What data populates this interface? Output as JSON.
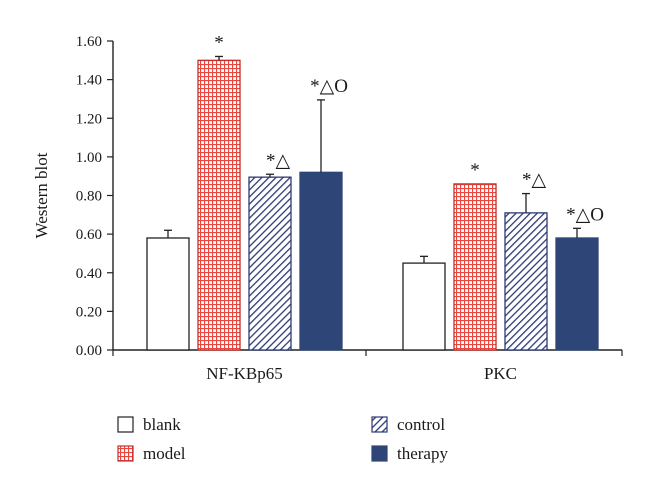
{
  "chart_data": {
    "type": "bar",
    "ylabel": "Western blot",
    "ylim": [
      0,
      1.6
    ],
    "yticks": [
      "0.00",
      "0.20",
      "0.40",
      "0.60",
      "0.80",
      "1.00",
      "1.20",
      "1.40",
      "1.60"
    ],
    "categories": [
      "NF-KBp65",
      "PKC"
    ],
    "series": [
      {
        "name": "blank",
        "values": [
          0.58,
          0.45
        ],
        "errors": [
          0.04,
          0.035
        ],
        "annotations": [
          "",
          ""
        ],
        "color": "#ffffff",
        "pattern": "none"
      },
      {
        "name": "model",
        "values": [
          1.5,
          0.86
        ],
        "errors": [
          0.02,
          0.0
        ],
        "annotations": [
          "*",
          "*"
        ],
        "color": "#e8473f",
        "pattern": "grid"
      },
      {
        "name": "control",
        "values": [
          0.895,
          0.71
        ],
        "errors": [
          0.015,
          0.1
        ],
        "annotations": [
          "*△",
          "*△"
        ],
        "color": "#2e3a73",
        "pattern": "diagonal"
      },
      {
        "name": "therapy",
        "values": [
          0.92,
          0.58
        ],
        "errors": [
          0.375,
          0.05
        ],
        "annotations": [
          "*△O",
          "*△O"
        ],
        "color": "#2e4677",
        "pattern": "solid"
      }
    ],
    "legend_position": "bottom",
    "grid": false
  }
}
